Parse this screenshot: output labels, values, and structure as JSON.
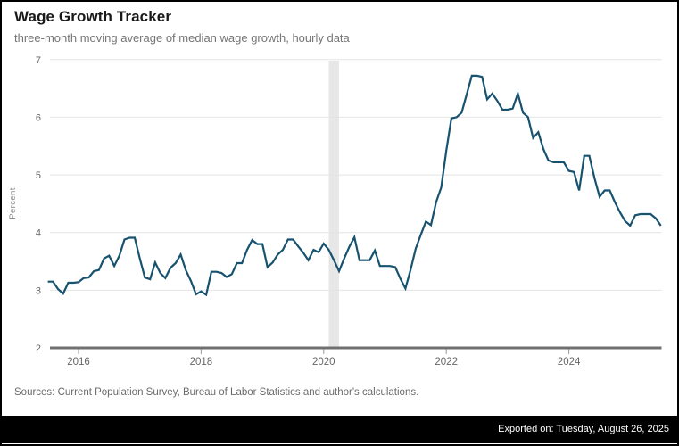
{
  "header": {
    "title": "Wage Growth Tracker",
    "subtitle": "three-month moving average of median wage growth, hourly data"
  },
  "notes": {
    "sources": "Sources: Current Population Survey, Bureau of Labor Statistics and author's calculations.",
    "exported": "Exported on: Tuesday, August 26, 2025"
  },
  "colors": {
    "line": "#17526f",
    "grid": "#e4e4e4",
    "axis": "#707070",
    "tick": "#9a9a9a",
    "tick_label": "#666666",
    "band": "#e7e7e7",
    "title": "#191919",
    "subtitle": "#757575",
    "sources": "#6b6b6b",
    "footer_bg": "#000000",
    "footer_text": "#ffffff"
  },
  "chart_data": {
    "type": "line",
    "title": "Wage Growth Tracker",
    "subtitle": "three-month moving average of median wage growth, hourly data",
    "xlabel": "",
    "ylabel": "Percent",
    "ylim": [
      2,
      7
    ],
    "yticks": [
      2,
      3,
      4,
      5,
      6,
      7
    ],
    "xticks": [
      2016,
      2018,
      2020,
      2022,
      2024
    ],
    "grid": true,
    "legend": false,
    "frequency": "monthly",
    "x_start": "2015-07",
    "x_end": "2025-07",
    "recession_band": {
      "from": "2020-02",
      "to": "2020-04"
    },
    "series": [
      {
        "name": "Median wage growth, 3-month moving average (hourly)",
        "values": [
          3.15,
          3.15,
          3.02,
          2.94,
          3.13,
          3.13,
          3.14,
          3.21,
          3.22,
          3.33,
          3.35,
          3.55,
          3.6,
          3.42,
          3.6,
          3.88,
          3.91,
          3.91,
          3.55,
          3.22,
          3.19,
          3.48,
          3.3,
          3.21,
          3.39,
          3.47,
          3.62,
          3.35,
          3.16,
          2.93,
          2.98,
          2.92,
          3.32,
          3.32,
          3.3,
          3.23,
          3.28,
          3.47,
          3.47,
          3.7,
          3.87,
          3.8,
          3.8,
          3.4,
          3.48,
          3.62,
          3.7,
          3.88,
          3.88,
          3.76,
          3.65,
          3.52,
          3.7,
          3.66,
          3.81,
          3.7,
          3.52,
          3.33,
          3.55,
          3.75,
          3.92,
          3.52,
          3.52,
          3.52,
          3.69,
          3.42,
          3.42,
          3.42,
          3.4,
          3.2,
          3.03,
          3.35,
          3.72,
          3.96,
          4.19,
          4.13,
          4.53,
          4.78,
          5.42,
          5.98,
          6.0,
          6.08,
          6.4,
          6.72,
          6.72,
          6.7,
          6.31,
          6.41,
          6.28,
          6.13,
          6.13,
          6.15,
          6.41,
          6.08,
          6.0,
          5.64,
          5.74,
          5.45,
          5.25,
          5.22,
          5.22,
          5.22,
          5.07,
          5.05,
          4.73,
          5.33,
          5.33,
          4.95,
          4.62,
          4.73,
          4.73,
          4.53,
          4.35,
          4.2,
          4.12,
          4.3,
          4.32,
          4.32,
          4.32,
          4.25,
          4.12
        ]
      }
    ]
  }
}
